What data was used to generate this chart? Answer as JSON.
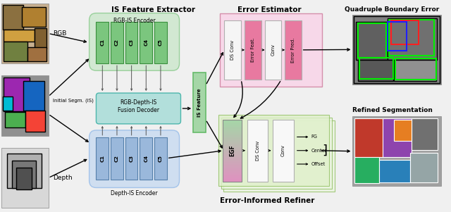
{
  "bg_color": "#f0f0f0",
  "fig_width": 6.4,
  "fig_height": 3.01,
  "section_labels": {
    "is_feature_extractor": "IS Feature Extractor",
    "error_estimator": "Error Estimator",
    "quadruple": "Quadruple Boundary Error",
    "refined": "Refined Segmentation",
    "error_informed": "Error-Informed Refiner"
  },
  "input_labels": [
    "RGB",
    "Initial Segm. (IS)",
    "Depth"
  ],
  "rgb_encoder_label": "RGB-IS Encoder",
  "depth_encoder_label": "Depth-IS Encoder",
  "fusion_decoder_label": "RGB-Depth-IS\nFusion Decoder",
  "is_feature_label": "IS Feature",
  "egf_label": "EGF",
  "rgb_blocks": [
    "C1",
    "C2",
    "C3",
    "C4",
    "C5"
  ],
  "depth_blocks": [
    "C1",
    "C2",
    "C3",
    "C4",
    "C5"
  ],
  "error_estimator_blocks": [
    "DS Conv",
    "Error Feat.",
    "Conv",
    "Error Pred."
  ],
  "error_estimator_colors": [
    "#f5f5f5",
    "#e879a0",
    "#f5f5f5",
    "#e879a0"
  ],
  "refiner_outputs": [
    "FG",
    "Center",
    "Offset"
  ],
  "green_encoder_bg": "#c8e6c9",
  "green_encoder_border": "#81c784",
  "green_block_fill": "#7bc67e",
  "green_block_border": "#388e3c",
  "blue_encoder_bg": "#c5d8f0",
  "blue_encoder_border": "#90b8e8",
  "blue_block_fill": "#9ab8db",
  "blue_block_border": "#5580aa",
  "teal_decoder_bg": "#b2dfdb",
  "teal_decoder_border": "#4db6ac",
  "green_isf_bg": "#a5d6a7",
  "green_isf_border": "#66bb6a",
  "pink_estimator_bg": "#f9d4e8",
  "pink_estimator_border": "#d080a0",
  "white_block": "#f8f8f8",
  "white_block_border": "#b0b0b0",
  "green_refiner_bg": "#d8edc8",
  "green_refiner_border": "#90c060",
  "egf_top": "#a5d6a7",
  "egf_bottom": "#e090c0"
}
